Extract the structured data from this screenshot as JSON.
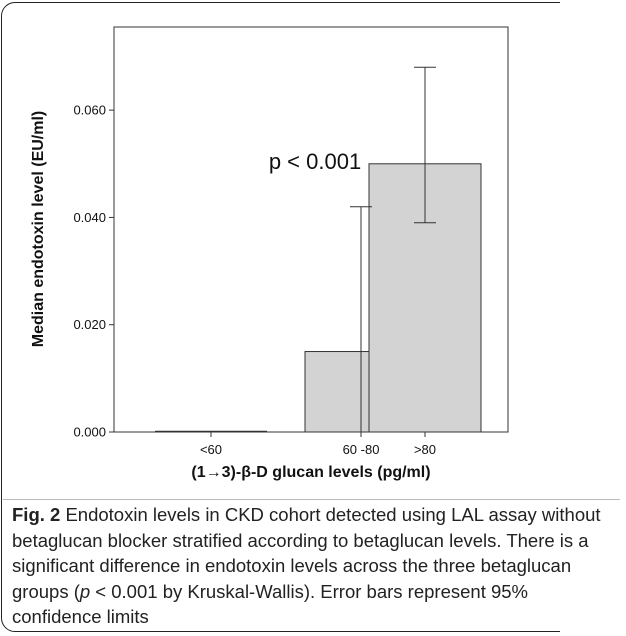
{
  "chart_data": {
    "type": "bar",
    "categories": [
      "<60",
      "60 -80",
      ">80"
    ],
    "values": [
      0.0,
      0.015,
      0.05
    ],
    "error_bars": [
      {
        "low": 0.0,
        "high": 0.0
      },
      {
        "low": 0.0,
        "high": 0.042
      },
      {
        "low": 0.039,
        "high": 0.068
      }
    ],
    "ylim": [
      0,
      0.0755
    ],
    "yticks": [
      {
        "value": 0.0,
        "label": "0.000"
      },
      {
        "value": 0.02,
        "label": "0.020"
      },
      {
        "value": 0.04,
        "label": "0.040"
      },
      {
        "value": 0.06,
        "label": "0.060"
      }
    ],
    "xlabel": "(1→3)-β-D glucan levels (pg/ml)",
    "ylabel": "Median endotoxin level (EU/ml)",
    "annotation": "p < 0.001",
    "bar_color": "#d3d3d3",
    "grid": false
  },
  "caption": {
    "label": "Fig. 2",
    "part1": " Endotoxin levels in CKD cohort detected using LAL assay without betaglucan blocker stratified according to betaglucan levels. There is a significant difference in endotoxin levels across the three betaglucan groups (",
    "p_symbol": "p",
    "part2": " < 0.001 by Kruskal-Wallis). Error bars represent 95% confidence limits"
  }
}
